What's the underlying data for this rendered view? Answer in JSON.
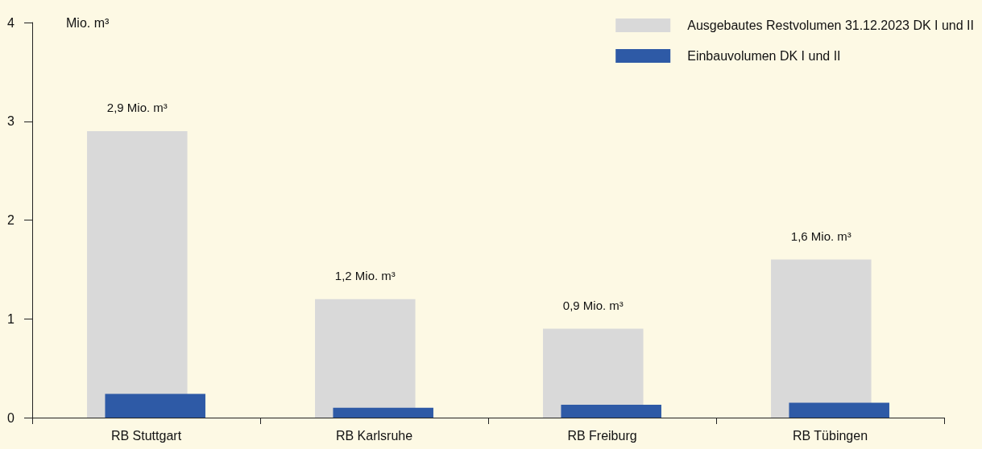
{
  "chart_data": {
    "type": "bar",
    "ylabel": "Mio. m³",
    "categories": [
      "RB Stuttgart",
      "RB Karlsruhe",
      "RB Freiburg",
      "RB Tübingen"
    ],
    "series": [
      {
        "name": "Ausgebautes Restvolumen 31.12.2023 DK I und II",
        "color": "#d9d9d9",
        "values": [
          2.9,
          1.2,
          0.9,
          1.6
        ],
        "value_labels": [
          "2,9 Mio. m³",
          "1,2 Mio. m³",
          "0,9 Mio. m³",
          "1,6 Mio. m³"
        ]
      },
      {
        "name": "Einbauvolumen DK I und II",
        "color": "#2e5aa6",
        "values": [
          0.24,
          0.1,
          0.13,
          0.15
        ]
      }
    ],
    "ylim": [
      0,
      4
    ],
    "yticks": [
      0,
      1,
      2,
      3,
      4
    ],
    "grid": false,
    "legend": "top right"
  }
}
